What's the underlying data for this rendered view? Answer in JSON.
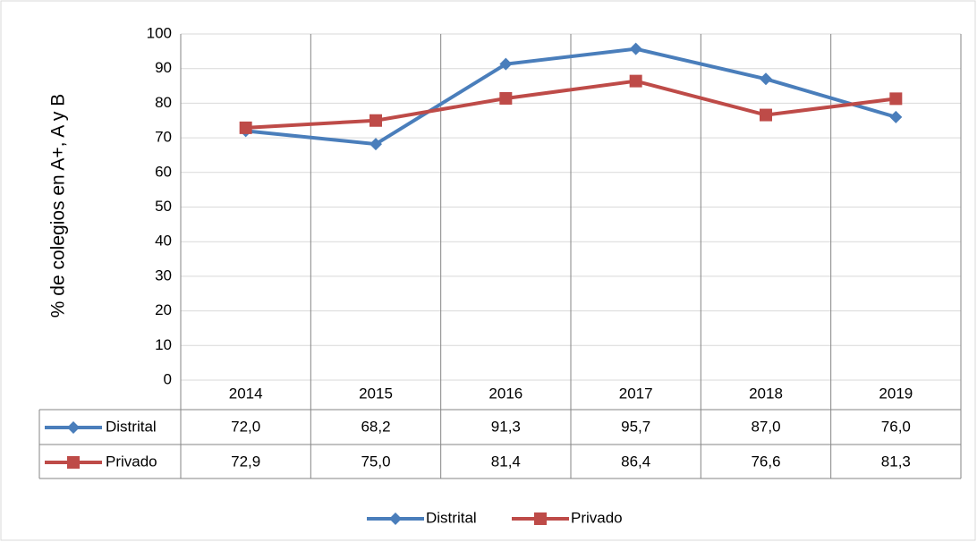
{
  "chart_data": {
    "type": "line",
    "y_label": "% de colegios en A+, A y B",
    "categories": [
      "2014",
      "2015",
      "2016",
      "2017",
      "2018",
      "2019"
    ],
    "series": [
      {
        "name": "Distrital",
        "color": "#4a7ebb",
        "marker": "diamond",
        "values": [
          72.0,
          68.2,
          91.3,
          95.7,
          87.0,
          76.0
        ],
        "value_labels": [
          "72,0",
          "68,2",
          "91,3",
          "95,7",
          "87,0",
          "76,0"
        ]
      },
      {
        "name": "Privado",
        "color": "#be4b48",
        "marker": "square",
        "values": [
          72.9,
          75.0,
          81.4,
          86.4,
          76.6,
          81.3
        ],
        "value_labels": [
          "72,9",
          "75,0",
          "81,4",
          "86,4",
          "76,6",
          "81,3"
        ]
      }
    ],
    "ylim": [
      0,
      100
    ],
    "yticks": [
      0,
      10,
      20,
      30,
      40,
      50,
      60,
      70,
      80,
      90,
      100
    ],
    "grid": true,
    "legend": "bottom",
    "data_table": true
  }
}
